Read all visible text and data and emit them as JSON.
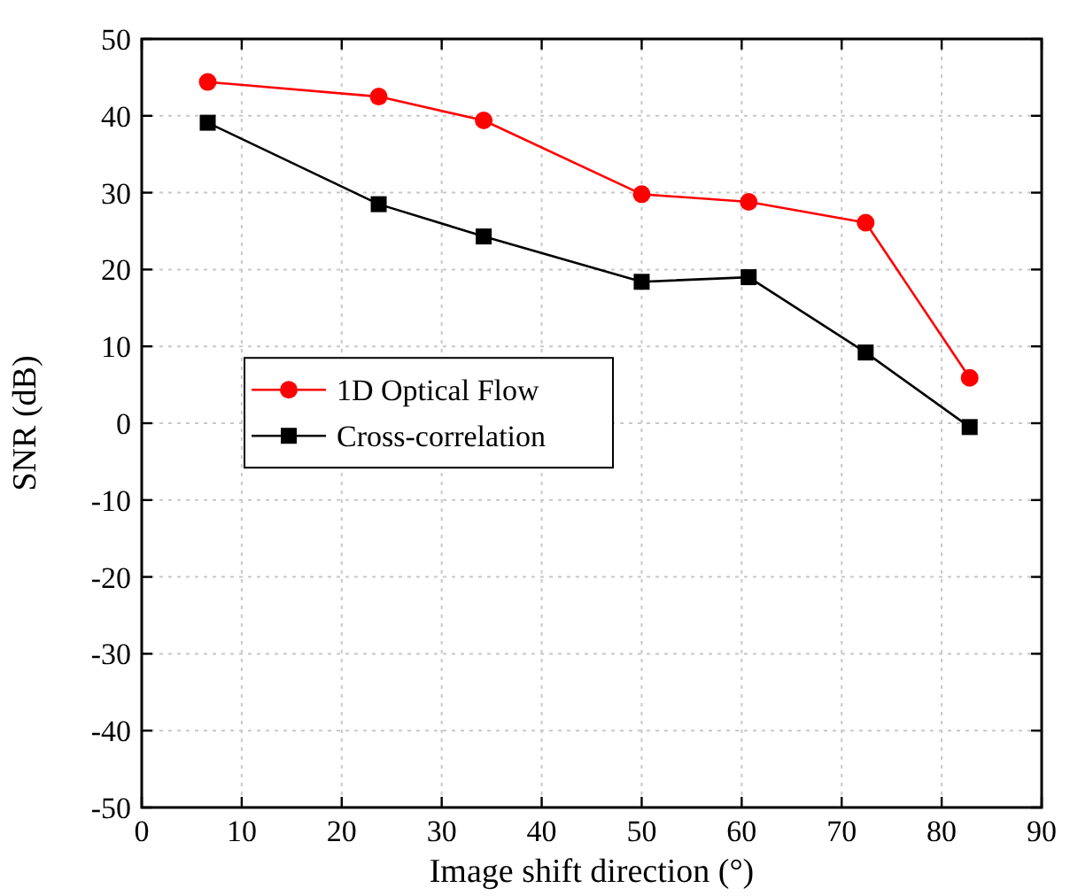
{
  "chart_data": {
    "type": "line",
    "xlabel": "Image shift direction (°)",
    "ylabel": "SNR (dB)",
    "x": [
      6.6,
      23.7,
      34.2,
      50.0,
      60.7,
      72.4,
      82.8
    ],
    "series": [
      {
        "name": "1D Optical Flow",
        "color": "#ff0000",
        "marker": "circle",
        "values": [
          44.4,
          42.5,
          39.4,
          29.8,
          28.8,
          26.1,
          5.9
        ]
      },
      {
        "name": "Cross-correlation",
        "color": "#000000",
        "marker": "square",
        "values": [
          39.1,
          28.5,
          24.3,
          18.4,
          19.0,
          9.2,
          -0.5
        ]
      }
    ],
    "xlim": [
      0,
      90
    ],
    "xticks": [
      0,
      10,
      20,
      30,
      40,
      50,
      60,
      70,
      80,
      90
    ],
    "ylim": [
      -50,
      50
    ],
    "yticks": [
      -50,
      -40,
      -30,
      -20,
      -10,
      0,
      10,
      20,
      30,
      40,
      50
    ],
    "grid": true,
    "legend": "left",
    "line_style": "solid"
  }
}
